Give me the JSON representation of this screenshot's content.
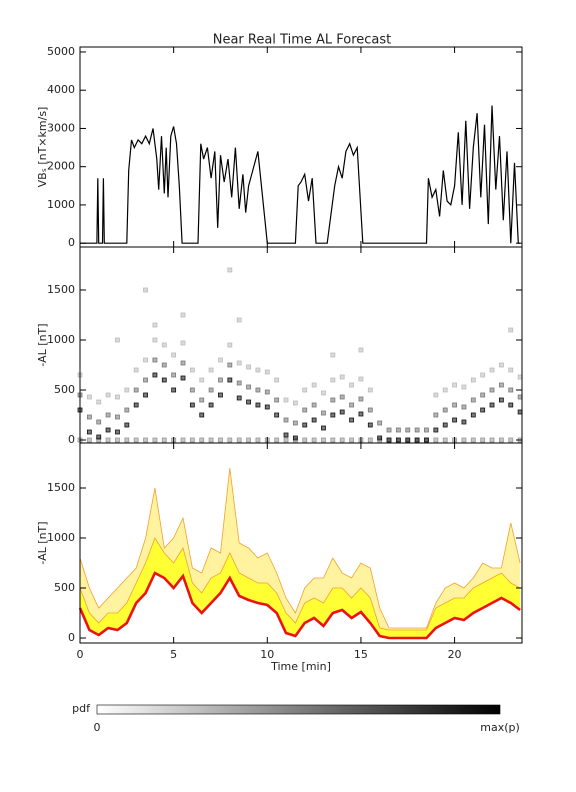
{
  "chart_data": [
    {
      "type": "line",
      "title": "Near Real Time AL Forecast",
      "ylabel": "VBₛ [nT×km/s]",
      "color": "#000000",
      "xlim": [
        0,
        23.6
      ],
      "ylim": [
        -100,
        5130
      ],
      "yticks": [
        0,
        1000,
        2000,
        3000,
        4000,
        5000
      ],
      "x": [
        0,
        0.9,
        0.95,
        1.0,
        1.05,
        1.2,
        1.25,
        1.3,
        1.35,
        1.5,
        1.9,
        2.0,
        2.5,
        2.6,
        2.75,
        2.9,
        3.1,
        3.3,
        3.5,
        3.7,
        3.9,
        4.1,
        4.2,
        4.35,
        4.5,
        4.6,
        4.7,
        4.85,
        5.0,
        5.15,
        5.3,
        5.45,
        5.6,
        6.3,
        6.45,
        6.6,
        6.8,
        7.0,
        7.2,
        7.35,
        7.5,
        7.7,
        7.9,
        8.1,
        8.3,
        8.5,
        8.7,
        8.85,
        9.0,
        9.5,
        10.0,
        11.5,
        11.65,
        11.8,
        12.0,
        12.2,
        12.4,
        12.6,
        12.8,
        13.0,
        13.2,
        13.6,
        13.8,
        14.0,
        14.2,
        14.4,
        14.6,
        14.8,
        15.1,
        15.5,
        18.5,
        18.6,
        18.8,
        19.0,
        19.2,
        19.4,
        19.6,
        19.8,
        20.0,
        20.2,
        20.4,
        20.6,
        20.8,
        21.0,
        21.2,
        21.4,
        21.6,
        21.8,
        22.0,
        22.2,
        22.4,
        22.6,
        22.8,
        23.0,
        23.2,
        23.4,
        23.5
      ],
      "values": [
        0,
        0,
        1700,
        0,
        0,
        0,
        1700,
        0,
        0,
        0,
        0,
        0,
        0,
        1900,
        2700,
        2500,
        2700,
        2600,
        2800,
        2600,
        3000,
        2200,
        1400,
        2800,
        1300,
        2500,
        1200,
        2800,
        3050,
        2600,
        1500,
        0,
        0,
        0,
        2600,
        2200,
        2500,
        1700,
        2400,
        400,
        2300,
        1600,
        2200,
        1200,
        2500,
        900,
        1800,
        800,
        1500,
        2400,
        0,
        0,
        1500,
        1600,
        1800,
        1100,
        1700,
        0,
        0,
        0,
        0,
        1500,
        2000,
        1700,
        2400,
        2600,
        2300,
        2500,
        0,
        0,
        0,
        1700,
        1200,
        1400,
        700,
        1900,
        1100,
        1000,
        1500,
        2900,
        1000,
        3200,
        900,
        2500,
        3400,
        1200,
        3100,
        500,
        3600,
        1400,
        2800,
        600,
        2400,
        0,
        2100,
        0,
        0
      ]
    },
    {
      "type": "scatter",
      "ylabel": "-AL [nT]",
      "xlim": [
        0,
        23.6
      ],
      "ylim": [
        -30,
        1930
      ],
      "yticks": [
        0,
        500,
        1000,
        1500
      ],
      "x": [
        0,
        0.5,
        1,
        1.5,
        2,
        2.5,
        3,
        3.5,
        4,
        4.5,
        5,
        5.5,
        6,
        6.5,
        7,
        7.5,
        8,
        8.5,
        9,
        9.5,
        10,
        10.5,
        11,
        11.5,
        12,
        12.5,
        13,
        13.5,
        14,
        14.5,
        15,
        15.5,
        16,
        16.5,
        17,
        17.5,
        18,
        18.5,
        19,
        19.5,
        20,
        20.5,
        21,
        21.5,
        22,
        22.5,
        23,
        23.5
      ],
      "series": [
        {
          "color": "#999999",
          "values": [
            0,
            0,
            0,
            0,
            0,
            0,
            0,
            0,
            0,
            0,
            0,
            0,
            0,
            0,
            0,
            0,
            0,
            0,
            0,
            0,
            0,
            0,
            0,
            0,
            0,
            0,
            0,
            0,
            0,
            0,
            0,
            0,
            0,
            0,
            0,
            0,
            0,
            0,
            0,
            0,
            0,
            0,
            0,
            0,
            0,
            0,
            0,
            0
          ]
        },
        {
          "color": "#bbbbbb",
          "values": [
            650,
            430,
            380,
            450,
            430,
            500,
            700,
            800,
            1000,
            950,
            850,
            970,
            700,
            600,
            700,
            800,
            950,
            770,
            730,
            700,
            680,
            600,
            400,
            370,
            500,
            550,
            470,
            600,
            630,
            550,
            610,
            500,
            null,
            null,
            null,
            null,
            null,
            null,
            450,
            500,
            550,
            530,
            600,
            650,
            700,
            750,
            700,
            630
          ]
        },
        {
          "color": "#bbbbbb",
          "values": [
            null,
            null,
            null,
            null,
            1000,
            null,
            null,
            1500,
            1150,
            null,
            null,
            1250,
            null,
            null,
            null,
            null,
            1700,
            1200,
            null,
            null,
            null,
            null,
            null,
            null,
            null,
            null,
            null,
            850,
            null,
            null,
            900,
            null,
            null,
            null,
            null,
            null,
            null,
            null,
            null,
            null,
            null,
            null,
            null,
            null,
            null,
            null,
            1100,
            null
          ]
        },
        {
          "color": "#777777",
          "values": [
            450,
            230,
            180,
            250,
            230,
            300,
            500,
            600,
            800,
            750,
            650,
            770,
            500,
            400,
            500,
            600,
            750,
            570,
            530,
            500,
            480,
            400,
            200,
            170,
            300,
            350,
            270,
            400,
            430,
            350,
            410,
            300,
            170,
            100,
            100,
            100,
            100,
            100,
            250,
            300,
            350,
            330,
            400,
            450,
            500,
            550,
            500,
            430
          ]
        },
        {
          "color": "#111111",
          "values": [
            300,
            80,
            30,
            100,
            80,
            150,
            350,
            450,
            650,
            600,
            500,
            620,
            350,
            250,
            350,
            450,
            600,
            420,
            380,
            350,
            330,
            250,
            50,
            20,
            150,
            200,
            120,
            250,
            280,
            200,
            260,
            150,
            20,
            0,
            0,
            0,
            0,
            0,
            100,
            150,
            200,
            180,
            250,
            300,
            350,
            400,
            350,
            280
          ]
        }
      ]
    },
    {
      "type": "band",
      "ylabel": "-AL [nT]",
      "xlabel": "Time [min]",
      "xlim": [
        0,
        23.6
      ],
      "ylim": [
        -50,
        1950
      ],
      "yticks": [
        0,
        500,
        1000,
        1500
      ],
      "xticks": [
        0,
        5,
        10,
        15,
        20
      ],
      "x": [
        0,
        0.5,
        1,
        1.5,
        2,
        2.5,
        3,
        3.5,
        4,
        4.5,
        5,
        5.5,
        6,
        6.5,
        7,
        7.5,
        8,
        8.5,
        9,
        9.5,
        10,
        10.5,
        11,
        11.5,
        12,
        12.5,
        13,
        13.5,
        14,
        14.5,
        15,
        15.5,
        16,
        16.5,
        17,
        17.5,
        18,
        18.5,
        19,
        19.5,
        20,
        20.5,
        21,
        21.5,
        22,
        22.5,
        23,
        23.5
      ],
      "series": [
        {
          "color": "#f0a030",
          "fill": "#fff3a0",
          "values": [
            800,
            500,
            300,
            400,
            500,
            600,
            700,
            1000,
            1500,
            900,
            1000,
            1200,
            700,
            650,
            900,
            850,
            1700,
            950,
            900,
            800,
            850,
            650,
            400,
            250,
            500,
            600,
            600,
            800,
            650,
            600,
            750,
            700,
            300,
            100,
            100,
            100,
            100,
            100,
            350,
            500,
            550,
            500,
            600,
            750,
            700,
            700,
            1150,
            750
          ]
        },
        {
          "color": "#f0a030",
          "fill": "#ffff33",
          "values": [
            500,
            250,
            150,
            250,
            250,
            350,
            550,
            750,
            1000,
            850,
            750,
            900,
            550,
            450,
            600,
            650,
            850,
            650,
            600,
            550,
            550,
            450,
            250,
            150,
            350,
            400,
            350,
            500,
            500,
            400,
            500,
            400,
            100,
            80,
            80,
            80,
            80,
            80,
            300,
            350,
            400,
            400,
            500,
            550,
            600,
            650,
            550,
            500
          ]
        },
        {
          "color": "#ee1111",
          "fill": "#ffffff",
          "values": [
            300,
            80,
            30,
            100,
            80,
            150,
            350,
            450,
            650,
            600,
            500,
            620,
            350,
            250,
            350,
            450,
            600,
            420,
            380,
            350,
            330,
            250,
            50,
            20,
            150,
            200,
            120,
            250,
            280,
            200,
            260,
            150,
            20,
            0,
            0,
            0,
            0,
            0,
            100,
            150,
            200,
            180,
            250,
            300,
            350,
            400,
            350,
            280
          ]
        }
      ]
    }
  ],
  "colorbar": {
    "label": "pdf",
    "min_label": "0",
    "max_label": "max(p)"
  }
}
